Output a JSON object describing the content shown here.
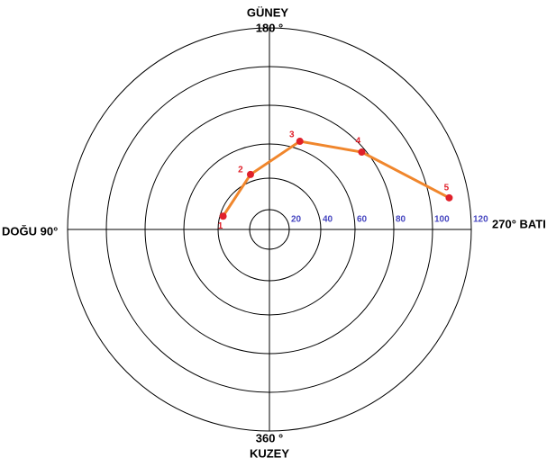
{
  "chart_data": {
    "type": "polar",
    "annotations": [
      "GÜNEY",
      "180 °",
      "DOĞU 90°",
      "270° BATI",
      "360 °",
      "KUZEY"
    ],
    "rlim": [
      0,
      120
    ],
    "rticks": [
      20,
      40,
      60,
      80,
      100,
      120
    ],
    "tick_color": "#4646c0",
    "points": [
      "1",
      "2",
      "3",
      "4",
      "5"
    ],
    "r": [
      38,
      44,
      64,
      78,
      110
    ],
    "theta": [
      106,
      161,
      199,
      230,
      260
    ],
    "color": "#e0202a",
    "line_color": "#f0862c"
  }
}
